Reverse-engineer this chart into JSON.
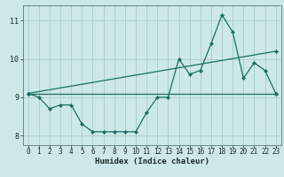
{
  "xlabel": "Humidex (Indice chaleur)",
  "x_values": [
    0,
    1,
    2,
    3,
    4,
    5,
    6,
    7,
    8,
    9,
    10,
    11,
    12,
    13,
    14,
    15,
    16,
    17,
    18,
    19,
    20,
    21,
    22,
    23
  ],
  "line1": [
    9.1,
    9.0,
    8.7,
    8.8,
    8.8,
    8.3,
    8.1,
    8.1,
    8.1,
    8.1,
    8.1,
    8.6,
    9.0,
    9.0,
    10.0,
    9.6,
    9.7,
    10.4,
    11.15,
    10.7,
    9.5,
    9.9,
    9.7,
    9.1
  ],
  "line2_x": [
    0,
    23
  ],
  "line2_y": [
    9.1,
    10.2
  ],
  "line3_x": [
    0,
    23
  ],
  "line3_y": [
    9.1,
    9.1
  ],
  "background_color": "#cce8e8",
  "grid_color": "#aacccc",
  "line_color": "#1a6e65",
  "ylim": [
    7.75,
    11.4
  ],
  "xlim": [
    -0.5,
    23.5
  ],
  "yticks": [
    8,
    9,
    10,
    11
  ],
  "xticks": [
    0,
    1,
    2,
    3,
    4,
    5,
    6,
    7,
    8,
    9,
    10,
    11,
    12,
    13,
    14,
    15,
    16,
    17,
    18,
    19,
    20,
    21,
    22,
    23
  ],
  "tick_fontsize": 5.5,
  "xlabel_fontsize": 6.5
}
